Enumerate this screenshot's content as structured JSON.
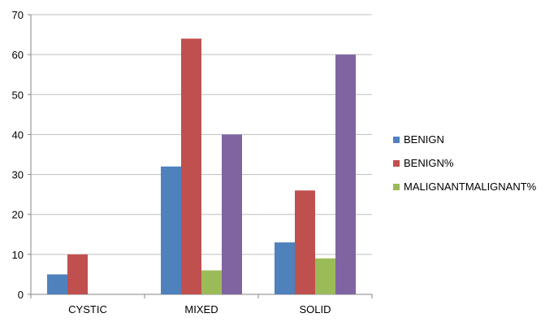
{
  "chart_data": {
    "type": "bar",
    "categories": [
      "CYSTIC",
      "MIXED",
      "SOLID"
    ],
    "series": [
      {
        "name": "BENIGN",
        "values": [
          5,
          32,
          13
        ],
        "color": "#4F81BD"
      },
      {
        "name": "BENIGN%",
        "values": [
          10,
          64,
          26
        ],
        "color": "#C0504D"
      },
      {
        "name": "MALIGNANTMALIGNANT%",
        "values": [
          0,
          6,
          9
        ],
        "color": "#9BBB59"
      },
      {
        "name": "",
        "values": [
          0,
          40,
          60
        ],
        "color": "#8064A2"
      }
    ],
    "yticks": [
      0,
      10,
      20,
      30,
      40,
      50,
      60,
      70
    ],
    "ylim": [
      0,
      70
    ],
    "grid": true,
    "legend_position": "right",
    "title": "",
    "xlabel": "",
    "ylabel": ""
  }
}
